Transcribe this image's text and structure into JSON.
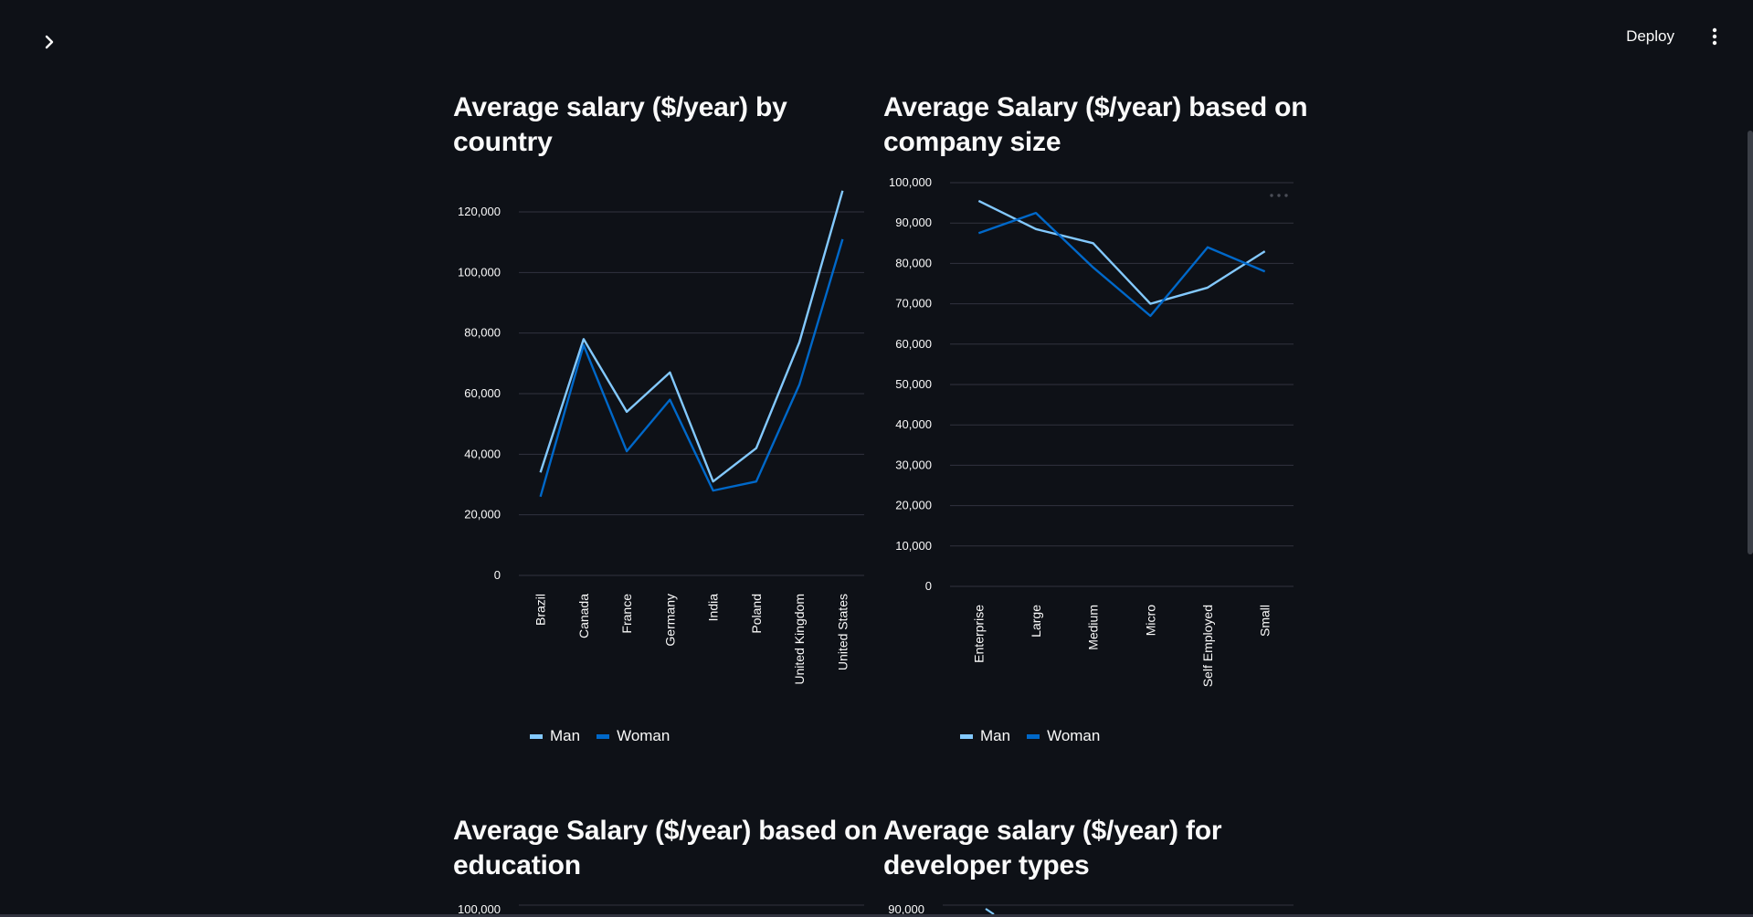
{
  "header": {
    "deploy_label": "Deploy"
  },
  "colors": {
    "man": "#83c9ff",
    "woman": "#0068c9",
    "grid": "#31333f",
    "background": "#0e1117"
  },
  "charts": [
    {
      "title": "Average salary ($/year) by country"
    },
    {
      "title": "Average Salary ($/year) based on company size"
    },
    {
      "title": "Average Salary ($/year) based on education"
    },
    {
      "title": "Average salary ($/year) for developer types"
    }
  ],
  "legend": {
    "man": "Man",
    "woman": "Woman"
  },
  "chart_data": [
    {
      "type": "line",
      "title": "Average salary ($/year) by country",
      "categories": [
        "Brazil",
        "Canada",
        "France",
        "Germany",
        "India",
        "Poland",
        "United Kingdom",
        "United States"
      ],
      "series": [
        {
          "name": "Man",
          "values": [
            34000,
            78000,
            54000,
            67000,
            31000,
            42000,
            77000,
            127000
          ]
        },
        {
          "name": "Woman",
          "values": [
            26000,
            76000,
            41000,
            58000,
            28000,
            31000,
            63000,
            111000
          ]
        }
      ],
      "y_ticks": [
        "0",
        "20,000",
        "40,000",
        "60,000",
        "80,000",
        "100,000",
        "120,000"
      ],
      "ylim": [
        0,
        120000
      ],
      "grid": true,
      "legend_position": "bottom"
    },
    {
      "type": "line",
      "title": "Average Salary ($/year) based on company size",
      "categories": [
        "Enterprise",
        "Large",
        "Medium",
        "Micro",
        "Self Employed",
        "Small"
      ],
      "series": [
        {
          "name": "Man",
          "values": [
            95500,
            88500,
            85000,
            70000,
            74000,
            83000
          ]
        },
        {
          "name": "Woman",
          "values": [
            87500,
            92500,
            79000,
            67000,
            84000,
            78000
          ]
        }
      ],
      "y_ticks": [
        "0",
        "10,000",
        "20,000",
        "30,000",
        "40,000",
        "50,000",
        "60,000",
        "70,000",
        "80,000",
        "90,000",
        "100,000"
      ],
      "ylim": [
        0,
        100000
      ],
      "grid": true,
      "legend_position": "bottom"
    },
    {
      "type": "line",
      "title": "Average Salary ($/year) based on education",
      "y_ticks": [
        "100,000"
      ]
    },
    {
      "type": "line",
      "title": "Average salary ($/year) for developer types",
      "y_ticks": [
        "90,000"
      ]
    }
  ]
}
